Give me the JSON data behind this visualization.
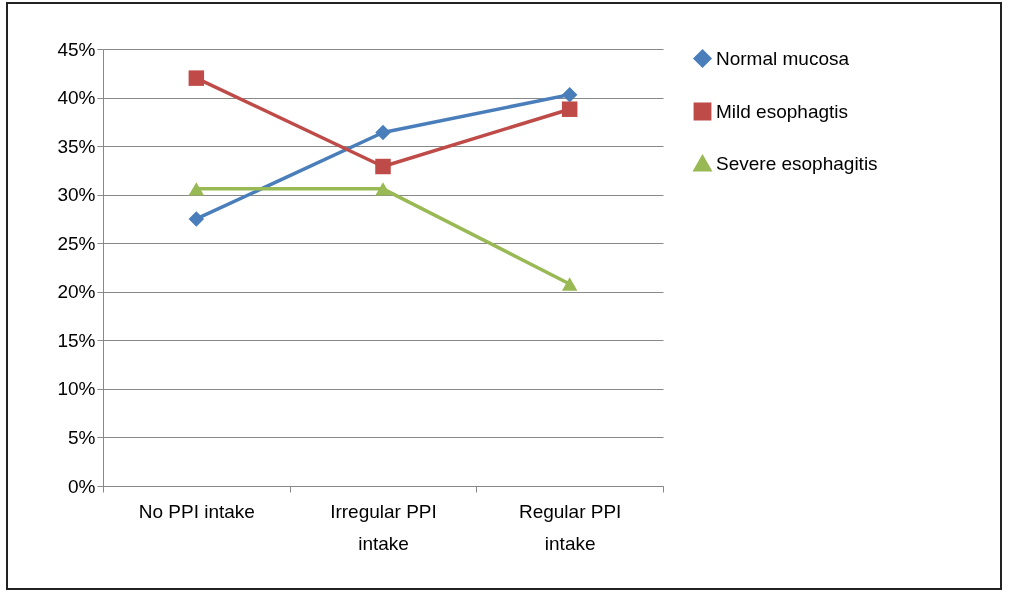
{
  "chart_data": {
    "type": "line",
    "categories": [
      "No PPI intake",
      "Irregular PPI intake",
      "Regular PPI intake"
    ],
    "series": [
      {
        "name": "Normal mucosa",
        "color": "#4a7ebb",
        "marker": "diamond",
        "values": [
          27.5,
          36.4,
          40.3
        ]
      },
      {
        "name": "Mild esophagtis",
        "color": "#be4b48",
        "marker": "square",
        "values": [
          42,
          32.9,
          38.8
        ]
      },
      {
        "name": "Severe esophagitis",
        "color": "#98b954",
        "marker": "triangle",
        "values": [
          30.6,
          30.6,
          20.8
        ]
      }
    ],
    "ylim": [
      0,
      45
    ],
    "yticks": [
      {
        "value": 0,
        "label": "0%"
      },
      {
        "value": 5,
        "label": "5%"
      },
      {
        "value": 10,
        "label": "10%"
      },
      {
        "value": 15,
        "label": "15%"
      },
      {
        "value": 20,
        "label": "20%"
      },
      {
        "value": 25,
        "label": "25%"
      },
      {
        "value": 30,
        "label": "30%"
      },
      {
        "value": 35,
        "label": "35%"
      },
      {
        "value": 40,
        "label": "40%"
      },
      {
        "value": 45,
        "label": "45%"
      }
    ],
    "grid": "y",
    "legend": "right",
    "line_style": "solid"
  }
}
